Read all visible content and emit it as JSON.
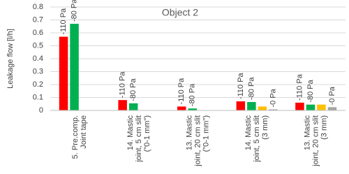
{
  "chart_data": {
    "type": "bar",
    "title": "Object 2",
    "y_label": "Leakage flow [l/h]",
    "categories": [
      [
        "5. Pre.comp.",
        "Joint tape"
      ],
      [
        "14. Mastic",
        "joint, 5 cm slit",
        "(\"0-1 mm\")"
      ],
      [
        "13. Mastic",
        "joint, 20 cm slit",
        "(\"0-1 mm\")"
      ],
      [
        "14. Mastic",
        "joint, 5 cm slit",
        "(3 mm)"
      ],
      [
        "13. Mastic",
        "joint, 20 cm slit",
        "(3 mm)"
      ]
    ],
    "series": [
      {
        "name": "-110 Pa",
        "color": "#ff0000",
        "values": [
          0.57,
          0.08,
          0.03,
          0.07,
          0.06
        ]
      },
      {
        "color": "#00b050",
        "values": [
          0.67,
          0.055,
          0.015,
          0.065,
          0.045
        ]
      },
      {
        "color": "#ffc000",
        "values": [
          null,
          null,
          null,
          0.03,
          0.045
        ]
      },
      {
        "name": "-0 Pa",
        "color": "#a5a5a5",
        "values": [
          null,
          null,
          null,
          0.008,
          0.025
        ]
      }
    ],
    "bar_labels": [
      "-110 Pa",
      "-80 Pa",
      null,
      "-0 Pa"
    ],
    "ylim": [
      0,
      0.8
    ],
    "yticks": [
      0,
      0.1,
      0.2,
      0.3,
      0.4,
      0.5,
      0.6,
      0.7,
      0.8
    ],
    "grid": true
  }
}
